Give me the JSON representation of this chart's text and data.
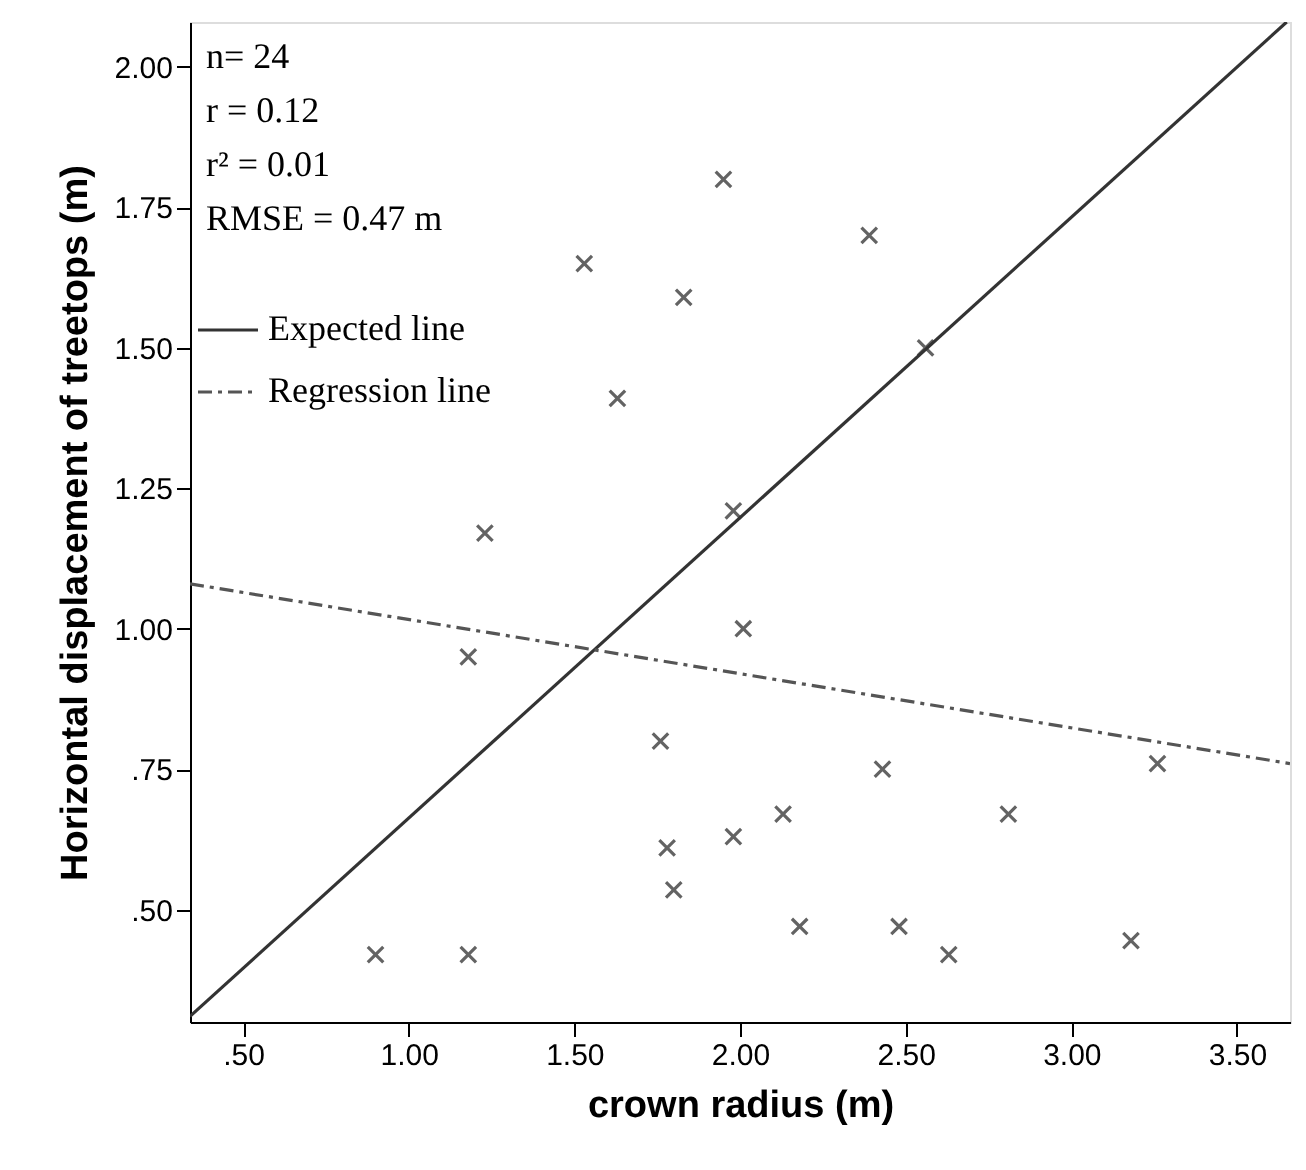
{
  "chart_data": {
    "type": "scatter",
    "xlabel": "crown radius (m)",
    "ylabel": "Horizontal  displacement of treetops (m)",
    "xlim": [
      0.34,
      3.66
    ],
    "ylim": [
      0.3,
      2.08
    ],
    "xticks": [
      {
        "value": 0.5,
        "label": ".50"
      },
      {
        "value": 1,
        "label": "1.00"
      },
      {
        "value": 1.5,
        "label": "1.50"
      },
      {
        "value": 2,
        "label": "2.00"
      },
      {
        "value": 2.5,
        "label": "2.50"
      },
      {
        "value": 3,
        "label": "3.00"
      },
      {
        "value": 3.5,
        "label": "3.50"
      }
    ],
    "yticks": [
      {
        "value": 0.5,
        "label": ".50"
      },
      {
        "value": 0.75,
        "label": ".75"
      },
      {
        "value": 1,
        "label": "1.00"
      },
      {
        "value": 1.25,
        "label": "1.25"
      },
      {
        "value": 1.5,
        "label": "1.50"
      },
      {
        "value": 1.75,
        "label": "1.75"
      },
      {
        "value": 2,
        "label": "2.00"
      }
    ],
    "grid": false,
    "legend": "top left",
    "annotations": [
      "n= 24",
      "r = 0.12",
      "r² = 0.01",
      "RMSE = 0.47 m"
    ],
    "series": [
      {
        "marker": "cross",
        "color": "#222222",
        "x": [
          1.95,
          1.53,
          1.83,
          1.63,
          1.23,
          1.98,
          2.39,
          2.56,
          2.01,
          1.18,
          1.76,
          1.78,
          1.8,
          1.98,
          0.9,
          1.18,
          2.13,
          2.43,
          2.81,
          3.26,
          2.18,
          2.48,
          2.63,
          3.18
        ],
        "values": [
          1.8,
          1.65,
          1.59,
          1.41,
          1.17,
          1.21,
          1.7,
          1.5,
          1.0,
          0.95,
          0.8,
          0.61,
          0.535,
          0.63,
          0.42,
          0.42,
          0.67,
          0.75,
          0.67,
          0.76,
          0.47,
          0.47,
          0.42,
          0.445
        ]
      },
      {
        "type": "line",
        "name": "Expected line",
        "color": "#333333",
        "line_style": "solid",
        "x": [
          0.34,
          3.65
        ],
        "values": [
          0.31,
          2.08
        ]
      },
      {
        "type": "line",
        "name": "Regression line",
        "color": "#555555",
        "line_style": "dashdot",
        "x": [
          0.34,
          3.66
        ],
        "values": [
          1.08,
          0.76
        ]
      }
    ]
  }
}
